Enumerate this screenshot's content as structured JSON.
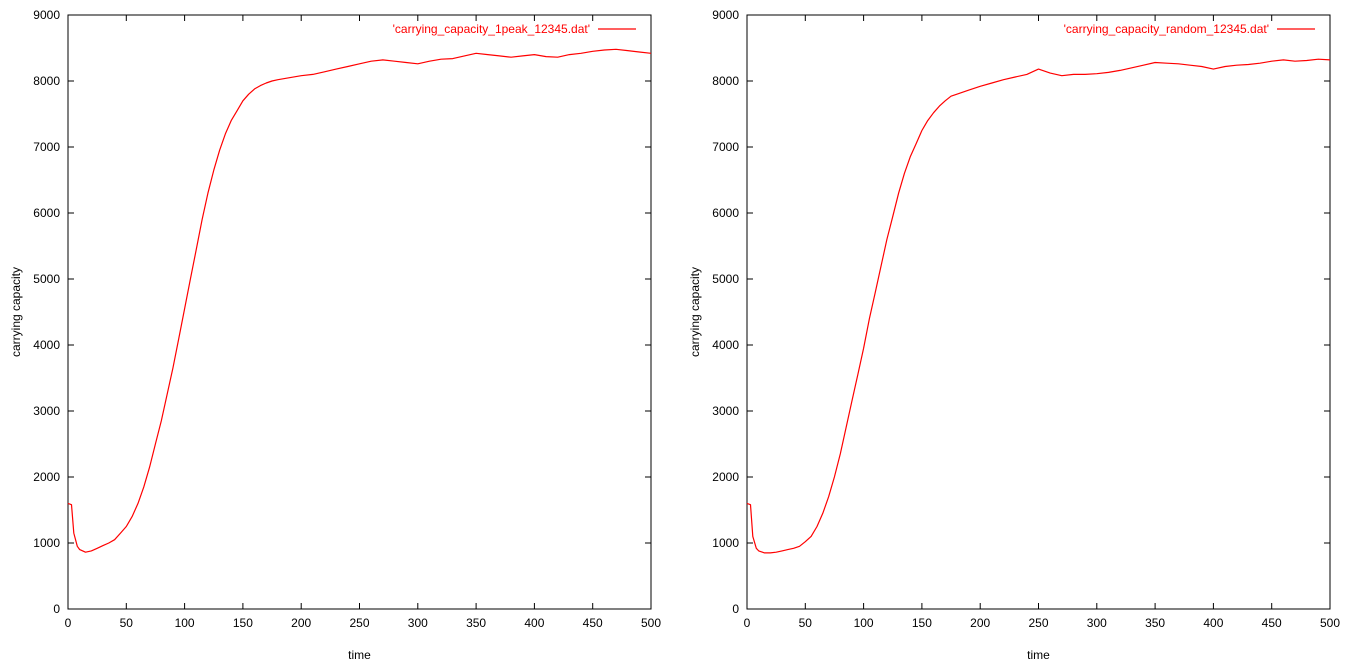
{
  "colors": {
    "series": "#ff0000",
    "frame": "#000000",
    "background": "#ffffff"
  },
  "chart_data": [
    {
      "type": "line",
      "title": "",
      "xlabel": "time",
      "ylabel": "carrying capacity",
      "xlim": [
        0,
        500
      ],
      "ylim": [
        0,
        9000
      ],
      "xticks": [
        0,
        50,
        100,
        150,
        200,
        250,
        300,
        350,
        400,
        450,
        500
      ],
      "yticks": [
        0,
        1000,
        2000,
        3000,
        4000,
        5000,
        6000,
        7000,
        8000,
        9000
      ],
      "grid": false,
      "legend_position": "top-right",
      "series": [
        {
          "name": "'carrying_capacity_1peak_12345.dat'",
          "color": "#ff0000",
          "x": [
            0,
            3,
            5,
            8,
            10,
            15,
            20,
            25,
            30,
            35,
            40,
            45,
            50,
            55,
            60,
            65,
            70,
            75,
            80,
            85,
            90,
            95,
            100,
            105,
            110,
            115,
            120,
            125,
            130,
            135,
            140,
            145,
            150,
            155,
            160,
            165,
            170,
            175,
            180,
            190,
            200,
            210,
            220,
            230,
            240,
            250,
            260,
            270,
            280,
            290,
            300,
            310,
            320,
            330,
            340,
            350,
            360,
            370,
            380,
            390,
            400,
            410,
            420,
            430,
            440,
            450,
            460,
            470,
            480,
            490,
            500
          ],
          "y": [
            1600,
            1580,
            1150,
            950,
            900,
            860,
            880,
            920,
            960,
            1000,
            1050,
            1150,
            1250,
            1400,
            1600,
            1850,
            2150,
            2500,
            2850,
            3250,
            3650,
            4100,
            4550,
            5000,
            5450,
            5900,
            6300,
            6650,
            6950,
            7200,
            7400,
            7550,
            7700,
            7800,
            7880,
            7930,
            7970,
            8000,
            8020,
            8050,
            8080,
            8100,
            8140,
            8180,
            8220,
            8260,
            8300,
            8320,
            8300,
            8280,
            8260,
            8300,
            8330,
            8340,
            8380,
            8420,
            8400,
            8380,
            8360,
            8380,
            8400,
            8370,
            8360,
            8400,
            8420,
            8450,
            8470,
            8480,
            8460,
            8440,
            8420
          ]
        }
      ]
    },
    {
      "type": "line",
      "title": "",
      "xlabel": "time",
      "ylabel": "carrying capacity",
      "xlim": [
        0,
        500
      ],
      "ylim": [
        0,
        9000
      ],
      "xticks": [
        0,
        50,
        100,
        150,
        200,
        250,
        300,
        350,
        400,
        450,
        500
      ],
      "yticks": [
        0,
        1000,
        2000,
        3000,
        4000,
        5000,
        6000,
        7000,
        8000,
        9000
      ],
      "grid": false,
      "legend_position": "top-right",
      "series": [
        {
          "name": "'carrying_capacity_random_12345.dat'",
          "color": "#ff0000",
          "x": [
            0,
            3,
            5,
            8,
            10,
            15,
            20,
            25,
            30,
            35,
            40,
            45,
            50,
            55,
            60,
            65,
            70,
            75,
            80,
            85,
            90,
            95,
            100,
            105,
            110,
            115,
            120,
            125,
            130,
            135,
            140,
            145,
            150,
            155,
            160,
            165,
            170,
            175,
            180,
            185,
            190,
            200,
            210,
            220,
            230,
            240,
            250,
            260,
            270,
            280,
            290,
            300,
            310,
            320,
            330,
            340,
            350,
            360,
            370,
            380,
            390,
            400,
            410,
            420,
            430,
            440,
            450,
            460,
            470,
            480,
            490,
            500
          ],
          "y": [
            1600,
            1580,
            1100,
            920,
            880,
            850,
            850,
            860,
            880,
            900,
            920,
            950,
            1020,
            1100,
            1250,
            1450,
            1700,
            2000,
            2350,
            2750,
            3150,
            3550,
            3950,
            4400,
            4800,
            5200,
            5600,
            5950,
            6300,
            6600,
            6850,
            7050,
            7250,
            7400,
            7520,
            7620,
            7700,
            7770,
            7800,
            7830,
            7860,
            7920,
            7970,
            8020,
            8060,
            8100,
            8180,
            8120,
            8080,
            8100,
            8100,
            8110,
            8130,
            8160,
            8200,
            8240,
            8280,
            8270,
            8260,
            8240,
            8220,
            8180,
            8220,
            8240,
            8250,
            8270,
            8300,
            8320,
            8300,
            8310,
            8330,
            8320
          ]
        }
      ]
    }
  ]
}
